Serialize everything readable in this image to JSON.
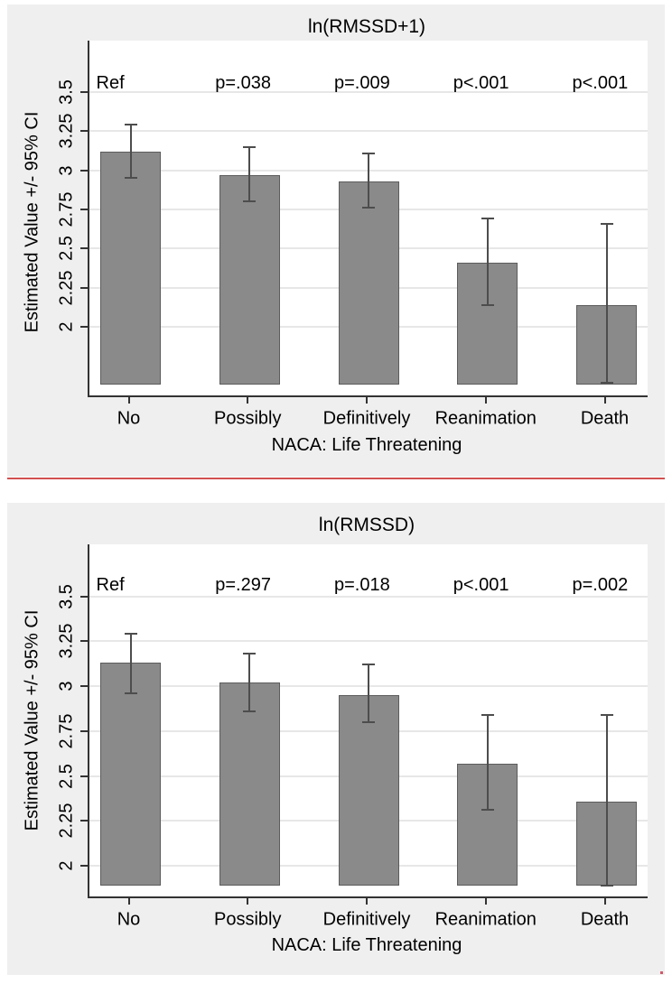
{
  "colors": {
    "panel_background": "#efefef",
    "plot_background": "#ffffff",
    "bar_fill": "#8a8a8a",
    "bar_border": "#5c5c5c",
    "whisker": "#4d4d4d",
    "gridline": "#e7e7e7",
    "axis": "#333333",
    "text": "#000000",
    "separator_line": "#d25050"
  },
  "chart_data": [
    {
      "type": "bar",
      "title": "ln(RMSSD+1)",
      "xlabel": "NACA: Life Threatening",
      "ylabel": "Estimated Value +/- 95% CI",
      "categories": [
        "No",
        "Possibly",
        "Definitively",
        "Reanimation",
        "Death"
      ],
      "values": [
        3.12,
        2.97,
        2.93,
        2.41,
        2.14
      ],
      "ci_low": [
        2.95,
        2.8,
        2.76,
        2.14,
        1.64
      ],
      "ci_high": [
        3.29,
        3.15,
        3.11,
        2.69,
        2.66
      ],
      "annotations": [
        "Ref",
        "p=.038",
        "p=.009",
        "p<.001",
        "p<.001"
      ],
      "yticks": [
        2,
        2.25,
        2.5,
        2.75,
        3,
        3.25,
        3.5
      ],
      "ytick_labels": [
        "2",
        "2.25",
        "2.5",
        "2.75",
        "3",
        "3.25",
        "3.5"
      ],
      "ylim": [
        1.56,
        3.83
      ],
      "bar_baseline": 1.63,
      "grid": "on",
      "legend": "none"
    },
    {
      "type": "bar",
      "title": "ln(RMSSD)",
      "xlabel": "NACA: Life Threatening",
      "ylabel": "Estimated Value +/- 95% CI",
      "categories": [
        "No",
        "Possibly",
        "Definitively",
        "Reanimation",
        "Death"
      ],
      "values": [
        3.13,
        3.02,
        2.95,
        2.57,
        2.36
      ],
      "ci_low": [
        2.96,
        2.86,
        2.8,
        2.31,
        1.89
      ],
      "ci_high": [
        3.29,
        3.18,
        3.12,
        2.84,
        2.84
      ],
      "annotations": [
        "Ref",
        "p=.297",
        "p=.018",
        "p<.001",
        "p=.002"
      ],
      "yticks": [
        2,
        2.25,
        2.5,
        2.75,
        3,
        3.25,
        3.5
      ],
      "ytick_labels": [
        "2",
        "2.25",
        "2.5",
        "2.75",
        "3",
        "3.25",
        "3.5"
      ],
      "ylim": [
        1.83,
        3.79
      ],
      "bar_baseline": 1.89,
      "grid": "on",
      "legend": "none"
    }
  ]
}
